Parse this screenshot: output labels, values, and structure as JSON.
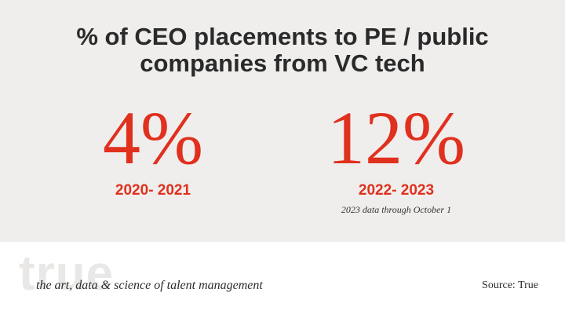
{
  "title_line1": "% of CEO placements to PE / public",
  "title_line2": "companies from VC tech",
  "stats": [
    {
      "value": "4%",
      "period": "2020- 2021",
      "note": ""
    },
    {
      "value": "12%",
      "period": "2022- 2023",
      "note": "2023 data through October 1"
    }
  ],
  "footer": {
    "logo_text": "true",
    "tagline": "the art, data & science of talent management",
    "source": "Source: True"
  },
  "colors": {
    "accent": "#e0301e",
    "panel_background": "#efeeec",
    "title_text": "#2a2a2a"
  }
}
